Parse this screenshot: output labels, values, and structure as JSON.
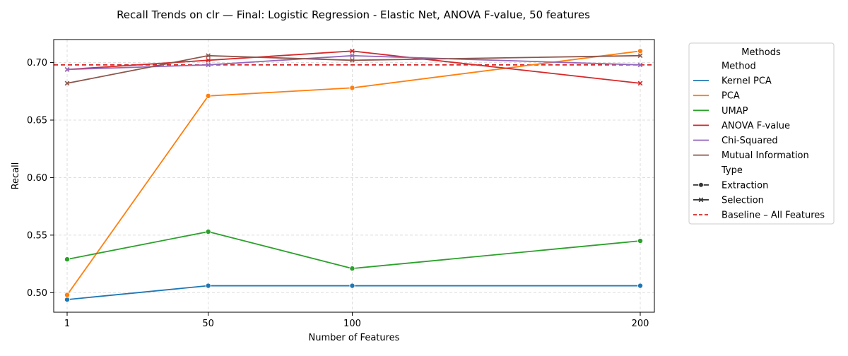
{
  "chart_data": {
    "type": "line",
    "title": "Recall Trends on clr — Final: Logistic Regression - Elastic Net, ANOVA F-value, 50 features",
    "xlabel": "Number of Features",
    "ylabel": "Recall",
    "x": [
      1,
      50,
      100,
      200
    ],
    "x_ticks": [
      "1",
      "50",
      "100",
      "200"
    ],
    "y_ticks": [
      "0.50",
      "0.55",
      "0.60",
      "0.65",
      "0.70"
    ],
    "ylim": [
      0.483,
      0.72
    ],
    "grid": true,
    "legend": {
      "title": "Methods",
      "placement": "outside-right",
      "method_header": "Method",
      "type_header": "Type",
      "extraction_label": "Extraction",
      "selection_label": "Selection",
      "baseline_label": "Baseline – All Features"
    },
    "baseline": {
      "value": 0.698,
      "color": "#d62728"
    },
    "series": [
      {
        "name": "Kernel PCA",
        "type": "Extraction",
        "marker": "circle",
        "color": "#1f77b4",
        "values": [
          0.494,
          0.506,
          0.506,
          0.506
        ]
      },
      {
        "name": "PCA",
        "type": "Extraction",
        "marker": "circle",
        "color": "#ff7f0e",
        "values": [
          0.498,
          0.671,
          0.678,
          0.71
        ]
      },
      {
        "name": "UMAP",
        "type": "Extraction",
        "marker": "circle",
        "color": "#2ca02c",
        "values": [
          0.529,
          0.553,
          0.521,
          0.545
        ]
      },
      {
        "name": "ANOVA F-value",
        "type": "Selection",
        "marker": "x",
        "color": "#d62728",
        "values": [
          0.694,
          0.702,
          0.71,
          0.682
        ]
      },
      {
        "name": "Chi-Squared",
        "type": "Selection",
        "marker": "x",
        "color": "#9467bd",
        "values": [
          0.694,
          0.698,
          0.706,
          0.698
        ]
      },
      {
        "name": "Mutual Information",
        "type": "Selection",
        "marker": "x",
        "color": "#8c564b",
        "values": [
          0.682,
          0.706,
          0.702,
          0.706
        ]
      }
    ]
  }
}
